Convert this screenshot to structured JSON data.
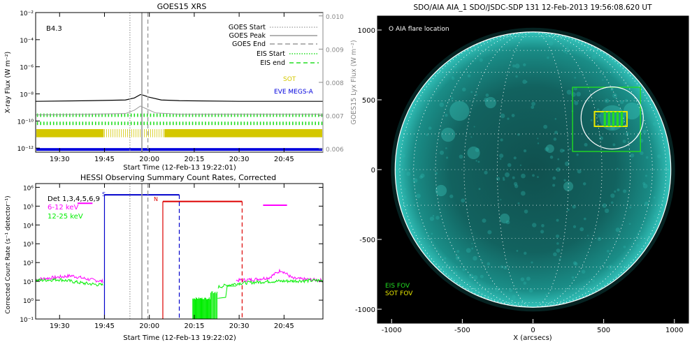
{
  "colors": {
    "goes_long": "#000000",
    "goes_short": "#9a9a9a",
    "sot": "#d4c800",
    "eve": "#0000dd",
    "eis": "#22dd22",
    "hessi_low": "#ff00ff",
    "hessi_high": "#00ee00",
    "hessi_state": "#0000cc",
    "red_marker": "#dd0000",
    "aia_disk": "#19a8a0",
    "fov_eis": "#22dd22",
    "fov_sot": "#e8e800"
  },
  "chart_data": [
    {
      "id": "goes",
      "type": "line",
      "title": "GOES15 XRS",
      "xlabel": "Start Time (12-Feb-13 19:22:01)",
      "ylabel": "X-ray Flux (W m⁻²)",
      "y2label": "GOES15 Lyx Flux (W m⁻²)",
      "class_label": "B4.3",
      "x_tick_labels": [
        "19:30",
        "19:45",
        "20:00",
        "20:15",
        "20:30",
        "20:45"
      ],
      "x_tick_minutes": [
        30,
        45,
        60,
        75,
        90,
        105
      ],
      "xlim_minutes": [
        22,
        118
      ],
      "y_tick_labels": [
        "10⁻¹²",
        "10⁻¹⁰",
        "10⁻⁸",
        "10⁻⁶",
        "10⁻⁴",
        "10⁻²"
      ],
      "y_tick_exponents": [
        -12,
        -10,
        -8,
        -6,
        -4,
        -2
      ],
      "ylim_log10": [
        -12.3,
        -2
      ],
      "y2_tick_labels": [
        "0.006",
        "0.007",
        "0.008",
        "0.009",
        "0.010"
      ],
      "y2_tick_values": [
        0.006,
        0.007,
        0.008,
        0.009,
        0.01
      ],
      "y2lim": [
        0.0059,
        0.0101
      ],
      "markers": {
        "goes_start": 53.5,
        "goes_peak": 57.5,
        "goes_end": 59.5
      },
      "legend": [
        {
          "label": "GOES Start",
          "style": "dotted",
          "color": "#9a9a9a"
        },
        {
          "label": "GOES Peak",
          "style": "solid",
          "color": "#9a9a9a"
        },
        {
          "label": "GOES End",
          "style": "dashed",
          "color": "#9a9a9a"
        },
        {
          "label": "EIS Start",
          "style": "dotted",
          "color": "#22dd22"
        },
        {
          "label": "EIS end",
          "style": "dashed",
          "color": "#22dd22"
        }
      ],
      "instrument_labels": [
        "SOT",
        "EVE MEGS-A"
      ],
      "series": [
        {
          "name": "",
          "color": "#000000",
          "x": [
            22,
            40,
            52,
            55,
            57,
            58,
            60,
            64,
            70,
            90,
            118
          ],
          "y_log10": [
            -8.55,
            -8.5,
            -8.45,
            -8.3,
            -8.05,
            -8.1,
            -8.25,
            -8.45,
            -8.5,
            -8.55,
            -8.55
          ]
        },
        {
          "name": "",
          "color": "#9a9a9a",
          "x": [
            22,
            40,
            52,
            55,
            57,
            59,
            62,
            70,
            90,
            118
          ],
          "y_log10": [
            -9.55,
            -9.5,
            -9.45,
            -9.2,
            -8.9,
            -9.1,
            -9.4,
            -9.5,
            -9.5,
            -9.5
          ]
        }
      ],
      "bands": [
        {
          "label": "EIS",
          "log10_top": -9.45,
          "log10_bottom": -9.7,
          "color": "#22dd22"
        },
        {
          "label": "EIS",
          "log10_top": -10.05,
          "log10_bottom": -10.3,
          "color": "#22dd22"
        },
        {
          "label": "SOT",
          "log10_top": -10.6,
          "log10_bottom": -11.2,
          "color": "#d4c800"
        },
        {
          "label": "EVE MEGS-A",
          "log10_top": -12.0,
          "log10_bottom": -12.2,
          "color": "#0000dd"
        }
      ]
    },
    {
      "id": "hessi",
      "type": "line",
      "title": "HESSI Observing Summary Count Rates, Corrected",
      "xlabel": "Start Time (12-Feb-13 19:22:02)",
      "ylabel": "Corrected Count Rate (s⁻¹ detector⁻¹)",
      "x_tick_labels": [
        "19:30",
        "19:45",
        "20:00",
        "20:15",
        "20:30",
        "20:45"
      ],
      "x_tick_minutes": [
        30,
        45,
        60,
        75,
        90,
        105
      ],
      "xlim_minutes": [
        22,
        118
      ],
      "y_tick_labels": [
        "10⁻¹",
        "10⁰",
        "10¹",
        "10²",
        "10³",
        "10⁴",
        "10⁵",
        "10⁶"
      ],
      "y_tick_exponents": [
        -1,
        0,
        1,
        2,
        3,
        4,
        5,
        6
      ],
      "ylim_log10": [
        -1,
        6.2
      ],
      "legend": [
        {
          "label": "Det 1,3,4,5,6,9",
          "color": "#000000"
        },
        {
          "label": "6-12 keV",
          "color": "#ff00ff"
        },
        {
          "label": "12-25 keV",
          "color": "#00ee00"
        }
      ],
      "state_labels": [
        "S",
        "N"
      ],
      "markers": {
        "goes_start": 53.5,
        "goes_peak": 57.5,
        "goes_end": 59.5
      },
      "series": [
        {
          "name": "6-12 keV",
          "color": "#ff00ff",
          "x": [
            22,
            28,
            34,
            40,
            44.5
          ],
          "y_log10": [
            1.1,
            1.2,
            1.3,
            1.1,
            1.0
          ],
          "x2": [
            89,
            95,
            100,
            104,
            108,
            118
          ],
          "y2_log10": [
            1.05,
            1.1,
            1.2,
            1.6,
            1.15,
            1.05
          ]
        },
        {
          "name": "12-25 keV",
          "color": "#00ee00",
          "x": [
            22,
            30,
            38,
            44.5
          ],
          "y_log10": [
            1.05,
            1.1,
            0.9,
            0.8
          ],
          "x2": [
            83,
            86,
            90,
            100,
            118
          ],
          "y2_log10": [
            0.7,
            0.8,
            0.9,
            1.0,
            1.05
          ]
        }
      ],
      "bars": [
        {
          "label": "S",
          "x_start": 45,
          "x_end": 70,
          "log10": 5.6,
          "color": "#0000cc"
        },
        {
          "label": "N",
          "x_start": 64.5,
          "x_end": 91,
          "log10": 5.25,
          "color": "#dd0000"
        },
        {
          "label": "",
          "x_start": 98,
          "x_end": 106,
          "log10": 5.05,
          "color": "#ff00ff"
        }
      ],
      "vlines": [
        {
          "x": 45,
          "style": "solid",
          "color": "#0000cc"
        },
        {
          "x": 70,
          "style": "dashed",
          "color": "#0000cc"
        },
        {
          "x": 64.5,
          "style": "solid",
          "color": "#dd0000"
        },
        {
          "x": 91,
          "style": "dashed",
          "color": "#dd0000"
        }
      ]
    },
    {
      "id": "aia",
      "type": "scatter",
      "title": "SDO/AIA AIA_1 SDO/JSDC-SDP 131 12-Feb-2013 19:56:08.620 UT",
      "xlabel": "X (arcsecs)",
      "inset_label": "O AIA flare location",
      "x_tick_labels": [
        "-1000",
        "-500",
        "0",
        "500",
        "1000"
      ],
      "x_tick_values": [
        -1000,
        -500,
        0,
        500,
        1000
      ],
      "y_tick_labels": [
        "1000",
        "500",
        "0",
        "-500",
        "-1000"
      ],
      "y_tick_values": [
        1000,
        500,
        0,
        -500,
        -1000
      ],
      "xlim": [
        -1100,
        1100
      ],
      "ylim": [
        -1100,
        1100
      ],
      "solar_radius_arcsec": 975,
      "flare_location": {
        "x": 560,
        "y": 370
      },
      "fov_labels": [
        "EIS FOV",
        "SOT FOV"
      ],
      "fov": [
        {
          "label": "EIS FOV",
          "x_min": 280,
          "x_max": 760,
          "y_min": 130,
          "y_max": 590,
          "color": "#22dd22"
        },
        {
          "label": "SOT FOV",
          "x_min": 435,
          "x_max": 665,
          "y_min": 310,
          "y_max": 415,
          "color": "#e8e800"
        }
      ]
    }
  ]
}
